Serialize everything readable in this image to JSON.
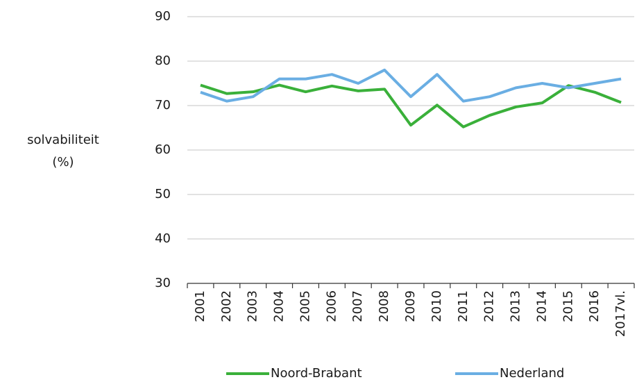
{
  "chart_data": {
    "type": "line",
    "y_label": [
      "solvabiliteit",
      "(%)"
    ],
    "categories": [
      "2001",
      "2002",
      "2003",
      "2004",
      "2005",
      "2006",
      "2007",
      "2008",
      "2009",
      "2010",
      "2011",
      "2012",
      "2013",
      "2014",
      "2015",
      "2016",
      "2017vl."
    ],
    "series": [
      {
        "name": "Noord-Brabant",
        "color": "#3ab03a",
        "values": [
          74.6,
          72.7,
          73.1,
          74.6,
          73.1,
          74.4,
          73.3,
          73.7,
          65.6,
          70.1,
          65.2,
          67.8,
          69.7,
          70.6,
          74.5,
          73.0,
          70.7
        ]
      },
      {
        "name": "Nederland",
        "color": "#6aaee3",
        "values": [
          73,
          71,
          72,
          76,
          76,
          77,
          75,
          78,
          72,
          77,
          71,
          72,
          74,
          75,
          74,
          75,
          76
        ]
      }
    ],
    "ylim": [
      30,
      90
    ],
    "yticks": [
      30,
      40,
      50,
      60,
      70,
      80,
      90
    ],
    "grid": true
  }
}
